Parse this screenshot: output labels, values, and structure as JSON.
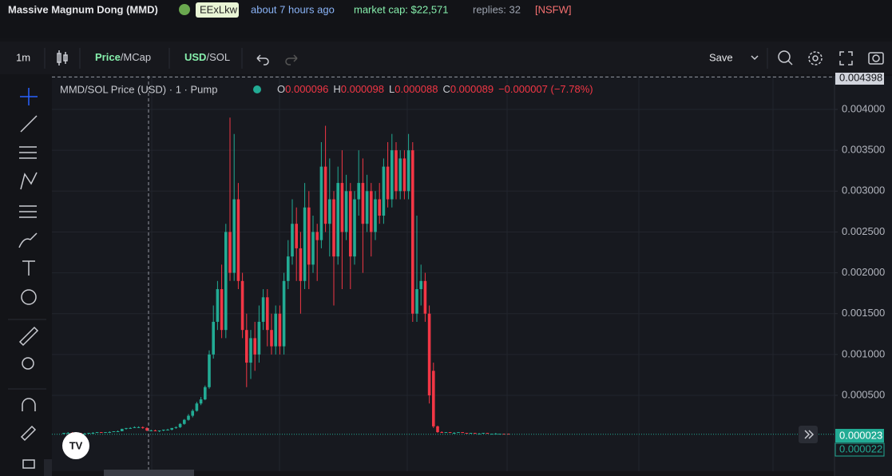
{
  "header": {
    "title": "Massive Magnum Dong (MMD)",
    "ticker": "EExLkw",
    "age": "about 7 hours ago",
    "market_cap": "market cap: $22,571",
    "replies": "replies: 32",
    "nsfw": "[NSFW]"
  },
  "toolbar": {
    "interval": "1m",
    "price": "Price",
    "mcap": "/MCap",
    "usd": "USD",
    "sol": "/SOL",
    "save": "Save"
  },
  "chart_data": {
    "type": "candlestick",
    "title": "MMD/SOL Price (USD) · 1 · Pump",
    "legend": {
      "o_label": "O",
      "o": 9.6e-05,
      "h_label": "H",
      "h": 9.8e-05,
      "l_label": "L",
      "l": 8.8e-05,
      "c_label": "C",
      "c": 8.9e-05,
      "change": "−0.000007 (−7.78%)"
    },
    "up_color": "#22ab94",
    "down_color": "#f23645",
    "ylim": [
      -0.000429,
      0.004411
    ],
    "yticks": [
      {
        "value": 0.0005,
        "label": "0.000500"
      },
      {
        "value": 0.001,
        "label": "0.001000"
      },
      {
        "value": 0.0015,
        "label": "0.001500"
      },
      {
        "value": 0.002,
        "label": "0.002000"
      },
      {
        "value": 0.0025,
        "label": "0.002500"
      },
      {
        "value": 0.003,
        "label": "0.003000"
      },
      {
        "value": 0.0035,
        "label": "0.003500"
      },
      {
        "value": 0.004,
        "label": "0.004000"
      }
    ],
    "grid": true,
    "crosshair_price": 0.004398,
    "last_price": 2.3e-05,
    "second_price": 2.2e-05,
    "candles": [
      [
        3e-05,
        4e-05,
        2e-05,
        4e-05
      ],
      [
        4e-05,
        5e-05,
        3e-05,
        4e-05
      ],
      [
        4e-05,
        5e-05,
        3e-05,
        3e-05
      ],
      [
        3e-05,
        4e-05,
        3e-05,
        4e-05
      ],
      [
        4e-05,
        4e-05,
        3e-05,
        3e-05
      ],
      [
        3e-05,
        4e-05,
        2e-05,
        3e-05
      ],
      [
        3e-05,
        4e-05,
        3e-05,
        4e-05
      ],
      [
        4e-05,
        5e-05,
        3e-05,
        4e-05
      ],
      [
        4e-05,
        5e-05,
        4e-05,
        5e-05
      ],
      [
        5e-05,
        5e-05,
        4e-05,
        4e-05
      ],
      [
        4e-05,
        5e-05,
        4e-05,
        5e-05
      ],
      [
        5e-05,
        6e-05,
        4e-05,
        5e-05
      ],
      [
        5e-05,
        6e-05,
        5e-05,
        6e-05
      ],
      [
        6e-05,
        7e-05,
        5e-05,
        6e-05
      ],
      [
        6e-05,
        9e-05,
        6e-05,
        9e-05
      ],
      [
        9e-05,
        0.0001,
        8e-05,
        0.0001
      ],
      [
        0.0001,
        0.00011,
        9e-05,
        0.0001
      ],
      [
        0.0001,
        0.00012,
        0.0001,
        0.00011
      ],
      [
        0.00011,
        0.00012,
        0.0001,
        0.00011
      ],
      [
        0.00011,
        0.00012,
        9e-05,
        0.0001
      ],
      [
        0.0001,
        0.00011,
        6e-05,
        7e-05
      ],
      [
        7e-05,
        8e-05,
        6e-05,
        7e-05
      ],
      [
        7e-05,
        8e-05,
        6e-05,
        6e-05
      ],
      [
        6e-05,
        7e-05,
        5e-05,
        7e-05
      ],
      [
        7e-05,
        8e-05,
        6e-05,
        8e-05
      ],
      [
        8e-05,
        9e-05,
        7e-05,
        8e-05
      ],
      [
        8e-05,
        0.0001,
        7e-05,
        0.0001
      ],
      [
        0.0001,
        0.00012,
        9e-05,
        0.00011
      ],
      [
        0.00011,
        0.00016,
        0.0001,
        0.00015
      ],
      [
        0.00015,
        0.00021,
        0.00014,
        0.0002
      ],
      [
        0.0002,
        0.00027,
        0.00019,
        0.00025
      ],
      [
        0.00025,
        0.00033,
        0.00023,
        0.00031
      ],
      [
        0.00031,
        0.00042,
        0.0003,
        0.0004
      ],
      [
        0.0004,
        0.00048,
        0.00038,
        0.00045
      ],
      [
        0.00045,
        0.00062,
        0.00044,
        0.0006
      ],
      [
        0.0006,
        0.00105,
        0.00058,
        0.001
      ],
      [
        0.001,
        0.0016,
        0.00095,
        0.0014
      ],
      [
        0.0014,
        0.0019,
        0.0013,
        0.0018
      ],
      [
        0.0018,
        0.0021,
        0.0012,
        0.0013
      ],
      [
        0.0013,
        0.0026,
        0.0012,
        0.0025
      ],
      [
        0.0025,
        0.0039,
        0.0019,
        0.002
      ],
      [
        0.002,
        0.0037,
        0.0019,
        0.0029
      ],
      [
        0.0029,
        0.0031,
        0.0018,
        0.0019
      ],
      [
        0.0019,
        0.002,
        0.0012,
        0.0013
      ],
      [
        0.0013,
        0.0015,
        0.0006,
        0.0009
      ],
      [
        0.0009,
        0.0013,
        0.0007,
        0.0012
      ],
      [
        0.0012,
        0.0014,
        0.0008,
        0.001
      ],
      [
        0.001,
        0.0016,
        0.0009,
        0.0014
      ],
      [
        0.0014,
        0.0018,
        0.0013,
        0.0017
      ],
      [
        0.0017,
        0.0018,
        0.0011,
        0.0013
      ],
      [
        0.0013,
        0.0015,
        0.001,
        0.0011
      ],
      [
        0.0011,
        0.0016,
        0.001,
        0.0015
      ],
      [
        0.0015,
        0.0016,
        0.001,
        0.0011
      ],
      [
        0.0011,
        0.002,
        0.001,
        0.0019
      ],
      [
        0.0019,
        0.0024,
        0.0018,
        0.0022
      ],
      [
        0.0022,
        0.0029,
        0.0021,
        0.0026
      ],
      [
        0.0026,
        0.0028,
        0.0019,
        0.0023
      ],
      [
        0.0023,
        0.0025,
        0.0015,
        0.0019
      ],
      [
        0.0019,
        0.0031,
        0.0018,
        0.0028
      ],
      [
        0.0028,
        0.003,
        0.0018,
        0.0021
      ],
      [
        0.0021,
        0.0027,
        0.002,
        0.0025
      ],
      [
        0.0025,
        0.0026,
        0.0019,
        0.0024
      ],
      [
        0.0024,
        0.0036,
        0.0023,
        0.0033
      ],
      [
        0.0033,
        0.0038,
        0.0025,
        0.0026
      ],
      [
        0.0026,
        0.0034,
        0.0022,
        0.0029
      ],
      [
        0.0029,
        0.003,
        0.0016,
        0.0022
      ],
      [
        0.0022,
        0.0033,
        0.0021,
        0.0031
      ],
      [
        0.0031,
        0.0035,
        0.0018,
        0.0025
      ],
      [
        0.0025,
        0.0032,
        0.0024,
        0.003
      ],
      [
        0.003,
        0.0031,
        0.0018,
        0.0022
      ],
      [
        0.0022,
        0.003,
        0.0021,
        0.0029
      ],
      [
        0.0029,
        0.0035,
        0.0027,
        0.0031
      ],
      [
        0.0031,
        0.0034,
        0.002,
        0.0026
      ],
      [
        0.0026,
        0.0032,
        0.0025,
        0.003
      ],
      [
        0.003,
        0.0031,
        0.0022,
        0.0025
      ],
      [
        0.0025,
        0.003,
        0.0024,
        0.0029
      ],
      [
        0.0029,
        0.0031,
        0.0026,
        0.0027
      ],
      [
        0.0027,
        0.0034,
        0.0026,
        0.0033
      ],
      [
        0.0033,
        0.0036,
        0.0028,
        0.0029
      ],
      [
        0.0029,
        0.0037,
        0.0028,
        0.0035
      ],
      [
        0.0035,
        0.0036,
        0.0029,
        0.003
      ],
      [
        0.003,
        0.0035,
        0.0029,
        0.0034
      ],
      [
        0.0034,
        0.0035,
        0.0029,
        0.003
      ],
      [
        0.003,
        0.0037,
        0.0029,
        0.0035
      ],
      [
        0.0035,
        0.0036,
        0.0014,
        0.0015
      ],
      [
        0.0015,
        0.0027,
        0.0014,
        0.0018
      ],
      [
        0.0018,
        0.0021,
        0.0016,
        0.0019
      ],
      [
        0.0019,
        0.002,
        0.0014,
        0.0015
      ],
      [
        0.0015,
        0.0016,
        0.0004,
        0.0005
      ],
      [
        0.0008,
        0.0009,
        0.0001,
        0.00012
      ],
      [
        0.00012,
        0.00013,
        4e-05,
        5e-05
      ],
      [
        5e-05,
        6e-05,
        4e-05,
        4e-05
      ],
      [
        4e-05,
        5e-05,
        4e-05,
        5e-05
      ],
      [
        5e-05,
        5e-05,
        4e-05,
        4e-05
      ],
      [
        4e-05,
        5e-05,
        3e-05,
        4e-05
      ],
      [
        4e-05,
        5e-05,
        4e-05,
        5e-05
      ],
      [
        5e-05,
        5e-05,
        4e-05,
        4e-05
      ],
      [
        4e-05,
        4e-05,
        3e-05,
        3e-05
      ],
      [
        3e-05,
        4e-05,
        3e-05,
        4e-05
      ],
      [
        4e-05,
        4e-05,
        3e-05,
        3e-05
      ],
      [
        3e-05,
        4e-05,
        3e-05,
        3e-05
      ],
      [
        3e-05,
        4e-05,
        3e-05,
        4e-05
      ],
      [
        4e-05,
        4e-05,
        3e-05,
        3e-05
      ],
      [
        3e-05,
        3e-05,
        2e-05,
        3e-05
      ],
      [
        3e-05,
        4e-05,
        3e-05,
        3e-05
      ],
      [
        3e-05,
        3e-05,
        2e-05,
        3e-05
      ],
      [
        3e-05,
        3e-05,
        2e-05,
        2e-05
      ],
      [
        3e-05,
        3e-05,
        2e-05,
        2.3e-05
      ]
    ]
  }
}
